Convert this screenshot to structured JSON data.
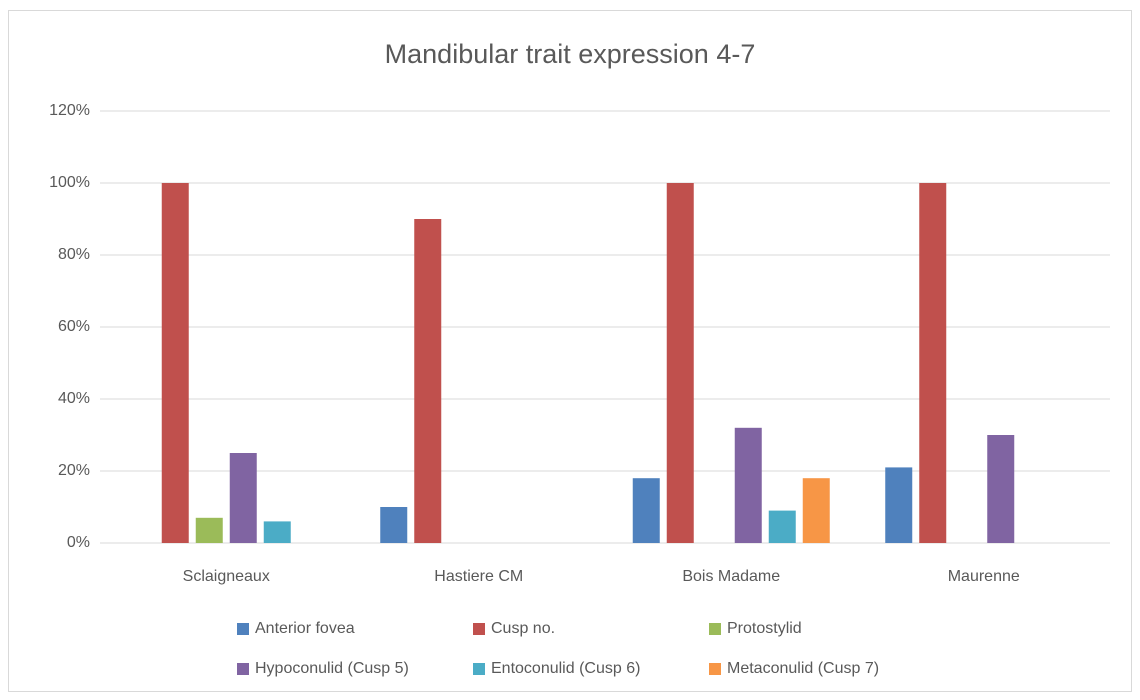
{
  "chart_data": {
    "type": "bar",
    "title": "Mandibular trait expression 4-7",
    "categories": [
      "Sclaigneaux",
      "Hastiere CM",
      "Bois Madame",
      "Maurenne"
    ],
    "series": [
      {
        "name": "Anterior fovea",
        "color": "#4f81bd",
        "values": [
          0,
          10,
          18,
          21
        ]
      },
      {
        "name": "Cusp no.",
        "color": "#c0504d",
        "values": [
          100,
          90,
          100,
          100
        ]
      },
      {
        "name": "Protostylid",
        "color": "#9bbb59",
        "values": [
          7,
          0,
          0,
          0
        ]
      },
      {
        "name": "Hypoconulid (Cusp 5)",
        "color": "#8064a2",
        "values": [
          25,
          0,
          32,
          30
        ]
      },
      {
        "name": "Entoconulid (Cusp 6)",
        "color": "#4bacc6",
        "values": [
          6,
          0,
          9,
          0
        ]
      },
      {
        "name": "Metaconulid (Cusp 7)",
        "color": "#f79646",
        "values": [
          0,
          0,
          18,
          0
        ]
      }
    ],
    "ylim": [
      0,
      120
    ],
    "yticks": [
      {
        "value": 0,
        "label": "0%"
      },
      {
        "value": 20,
        "label": "20%"
      },
      {
        "value": 40,
        "label": "40%"
      },
      {
        "value": 60,
        "label": "60%"
      },
      {
        "value": 80,
        "label": "80%"
      },
      {
        "value": 100,
        "label": "100%"
      },
      {
        "value": 120,
        "label": "120%"
      }
    ],
    "grid": true,
    "legend": "bottom"
  }
}
